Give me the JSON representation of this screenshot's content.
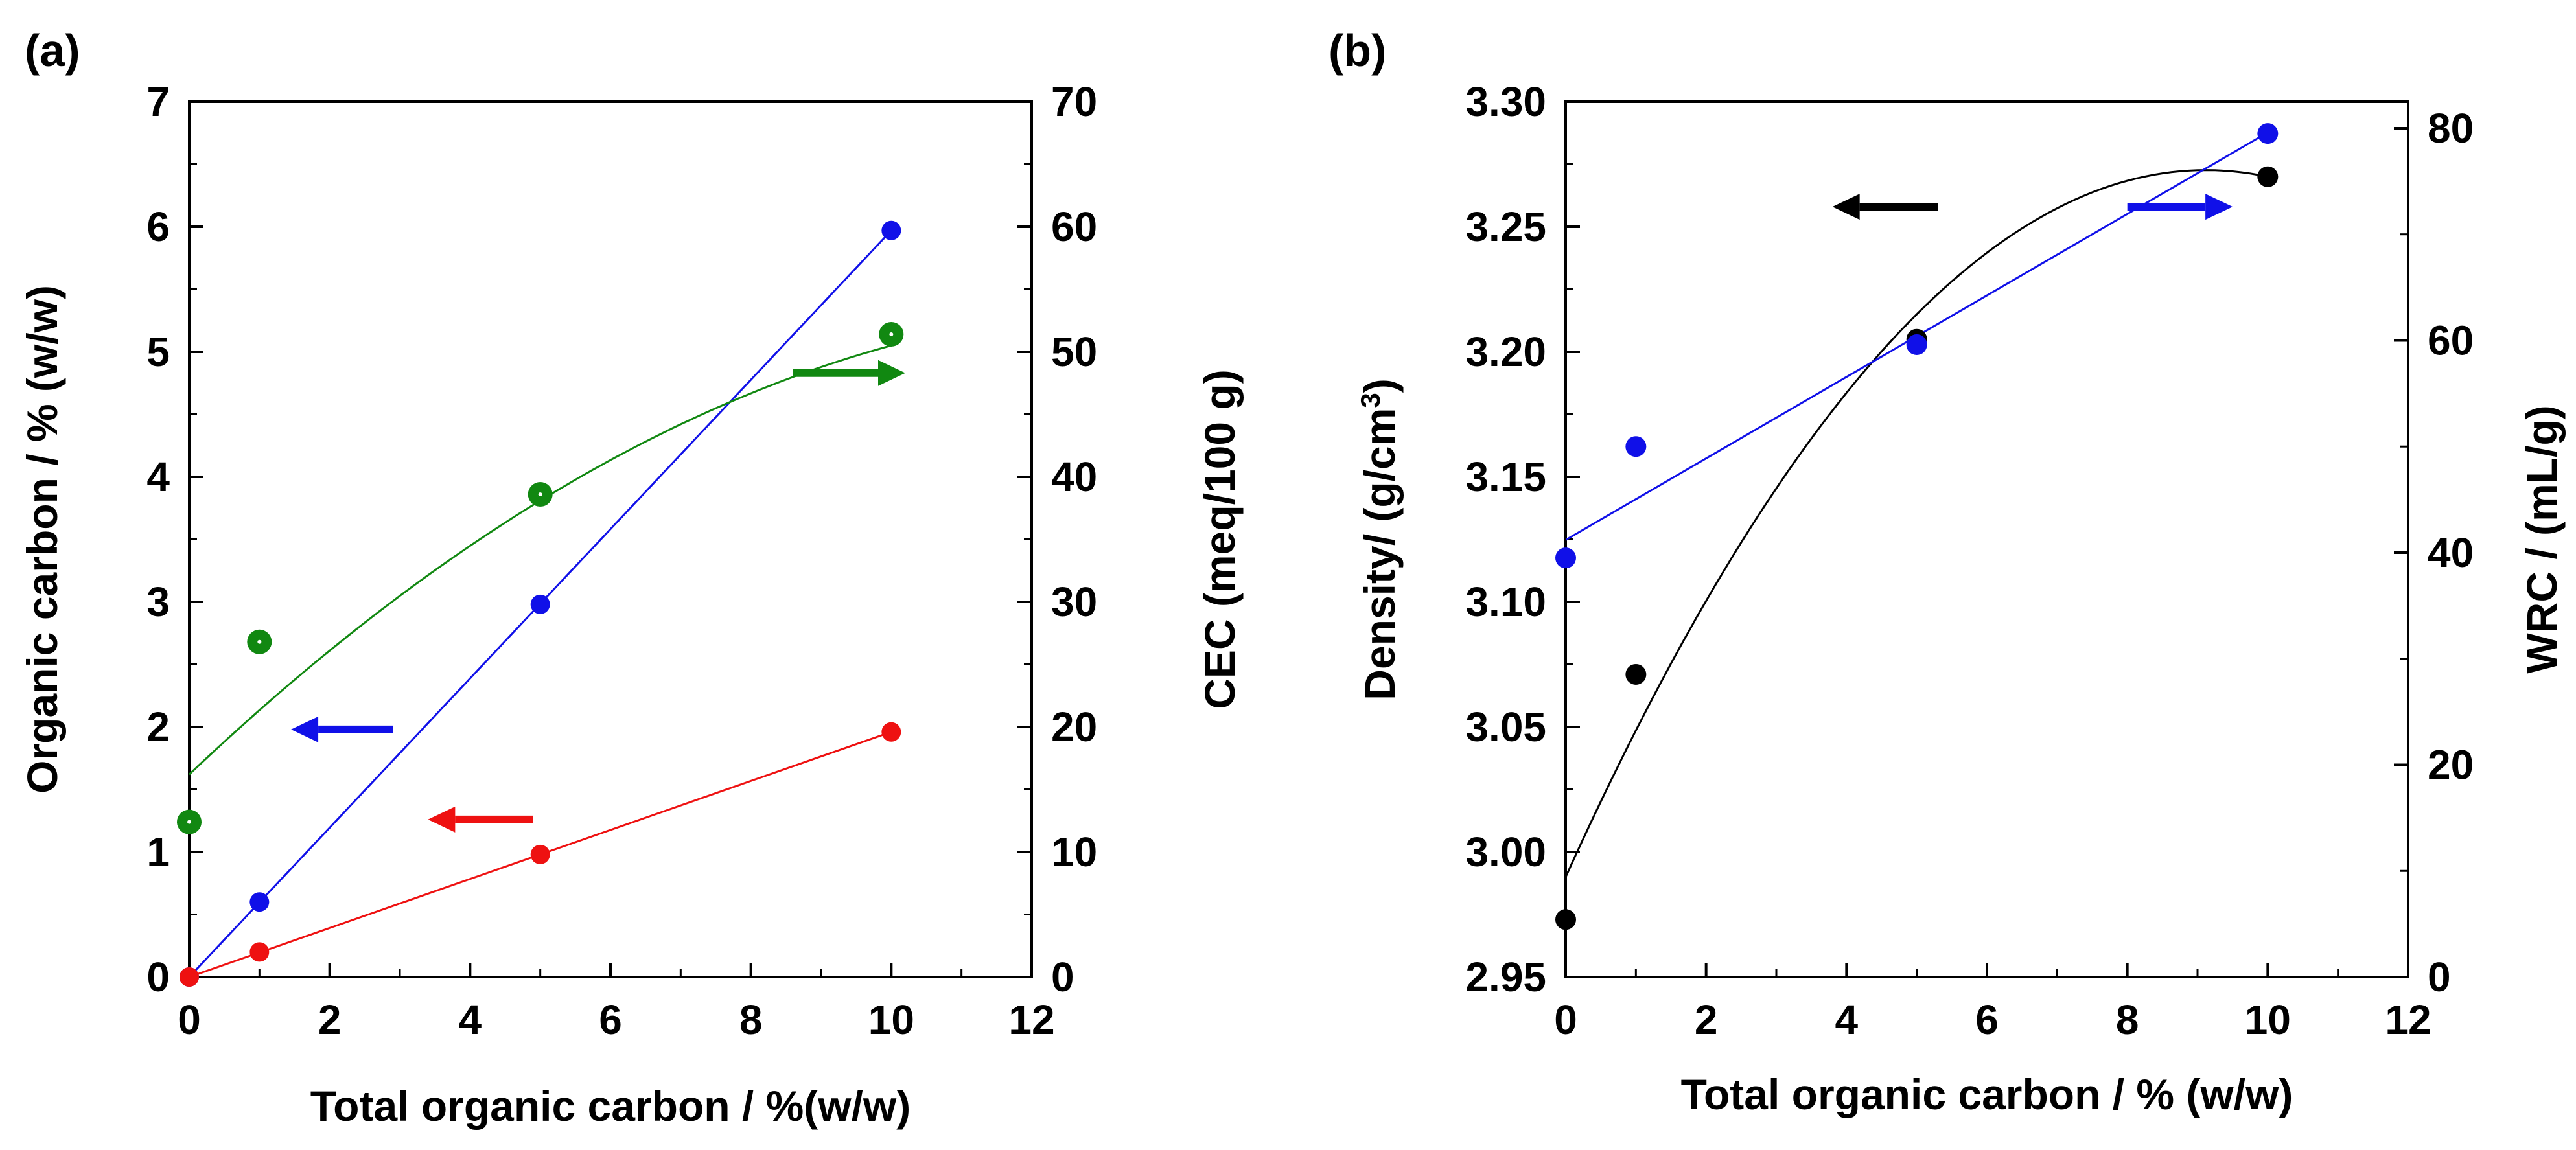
{
  "colors": {
    "blue": "#1010e8",
    "red": "#ee1111",
    "green": "#118811",
    "black": "#000000"
  },
  "chart_data": [
    {
      "type": "scatter",
      "panel_label": "(a)",
      "xlabel": "Total organic carbon / %(w/w)",
      "ylabel_left": "Organic carbon / % (w/w)",
      "ylabel_right": "CEC (meq/100 g)",
      "xlim": [
        0,
        12
      ],
      "ylim_left": [
        0,
        7
      ],
      "ylim_right": [
        0,
        70
      ],
      "x_ticks": [
        0,
        2,
        4,
        6,
        8,
        10,
        12
      ],
      "x_tick_labels": [
        "0",
        "2",
        "4",
        "6",
        "8",
        "10",
        "12"
      ],
      "y_left_ticks": [
        0,
        1,
        2,
        3,
        4,
        5,
        6,
        7
      ],
      "y_left_tick_labels": [
        "0",
        "1",
        "2",
        "3",
        "4",
        "5",
        "6",
        "7"
      ],
      "y_right_ticks": [
        0,
        10,
        20,
        30,
        40,
        50,
        60,
        70
      ],
      "y_right_tick_labels": [
        "0",
        "10",
        "20",
        "30",
        "40",
        "50",
        "60",
        "70"
      ],
      "grid": false,
      "series": [
        {
          "name": "Blue (organic carbon)",
          "color": "blue",
          "axis": "left",
          "marker": "small-dot",
          "x": [
            0,
            1,
            5,
            10
          ],
          "y": [
            0,
            0.6,
            2.98,
            5.97
          ],
          "fit": {
            "type": "linear",
            "x": [
              0,
              10
            ],
            "y": [
              0,
              5.97
            ]
          }
        },
        {
          "name": "Red (organic carbon)",
          "color": "red",
          "axis": "left",
          "marker": "small-dot",
          "x": [
            0,
            1,
            5,
            10
          ],
          "y": [
            0,
            0.2,
            0.98,
            1.96
          ],
          "fit": {
            "type": "linear",
            "x": [
              0,
              10
            ],
            "y": [
              0,
              1.96
            ]
          }
        },
        {
          "name": "Green (CEC)",
          "color": "green",
          "axis": "right",
          "marker": "large-dot",
          "x": [
            0,
            1,
            5,
            10
          ],
          "y": [
            12.4,
            26.8,
            38.6,
            51.4
          ],
          "fit": {
            "type": "quadratic",
            "coeffs": [
              16.2,
              5.33,
              -0.19
            ],
            "x_range": [
              0,
              10
            ]
          }
        }
      ],
      "arrows": [
        {
          "color": "blue",
          "direction": "left",
          "x": [
            2.9,
            1.45
          ],
          "y": 1.98,
          "axis": "left"
        },
        {
          "color": "red",
          "direction": "left",
          "x": [
            4.9,
            3.4
          ],
          "y": 1.26,
          "axis": "left"
        },
        {
          "color": "green",
          "direction": "right",
          "x": [
            8.6,
            10.2
          ],
          "y": 48.3,
          "axis": "right"
        }
      ]
    },
    {
      "type": "scatter",
      "panel_label": "(b)",
      "xlabel": "Total organic carbon / % (w/w)",
      "ylabel_left": "Density/ (g/cm",
      "ylabel_left_sup": "3",
      "ylabel_left_end": ")",
      "ylabel_right": "WRC / (mL/g)",
      "xlim": [
        0,
        12
      ],
      "ylim_left": [
        2.95,
        3.3
      ],
      "ylim_right": [
        0,
        82.5
      ],
      "x_ticks": [
        0,
        2,
        4,
        6,
        8,
        10,
        12
      ],
      "x_tick_labels": [
        "0",
        "2",
        "4",
        "6",
        "8",
        "10",
        "12"
      ],
      "y_left_ticks": [
        2.95,
        3.0,
        3.05,
        3.1,
        3.15,
        3.2,
        3.25,
        3.3
      ],
      "y_left_tick_labels": [
        "2.95",
        "3.00",
        "3.05",
        "3.10",
        "3.15",
        "3.20",
        "3.25",
        "3.30"
      ],
      "y_right_ticks": [
        0,
        20,
        40,
        60,
        80
      ],
      "y_right_tick_labels": [
        "0",
        "20",
        "40",
        "60",
        "80"
      ],
      "grid": false,
      "series": [
        {
          "name": "Density",
          "color": "black",
          "axis": "left",
          "marker": "dot",
          "x": [
            0,
            1,
            5,
            10
          ],
          "y": [
            2.973,
            3.071,
            3.205,
            3.27
          ],
          "fit": {
            "type": "quadratic",
            "coeffs": [
              2.99,
              0.062,
              -0.0034
            ],
            "x_range": [
              0,
              10
            ]
          }
        },
        {
          "name": "WRC",
          "color": "blue",
          "axis": "right",
          "marker": "dot",
          "x": [
            0,
            1,
            5,
            10
          ],
          "y": [
            39.5,
            50,
            59.6,
            79.5
          ],
          "fit": {
            "type": "linear",
            "x": [
              0,
              10
            ],
            "y": [
              41.2,
              79.6
            ]
          }
        }
      ],
      "arrows": [
        {
          "color": "black",
          "direction": "left",
          "x": [
            5.3,
            3.8
          ],
          "y": 3.258,
          "axis": "left"
        },
        {
          "color": "blue",
          "direction": "right",
          "x": [
            8.0,
            9.5
          ],
          "y": 3.258,
          "axis": "left"
        }
      ]
    }
  ]
}
